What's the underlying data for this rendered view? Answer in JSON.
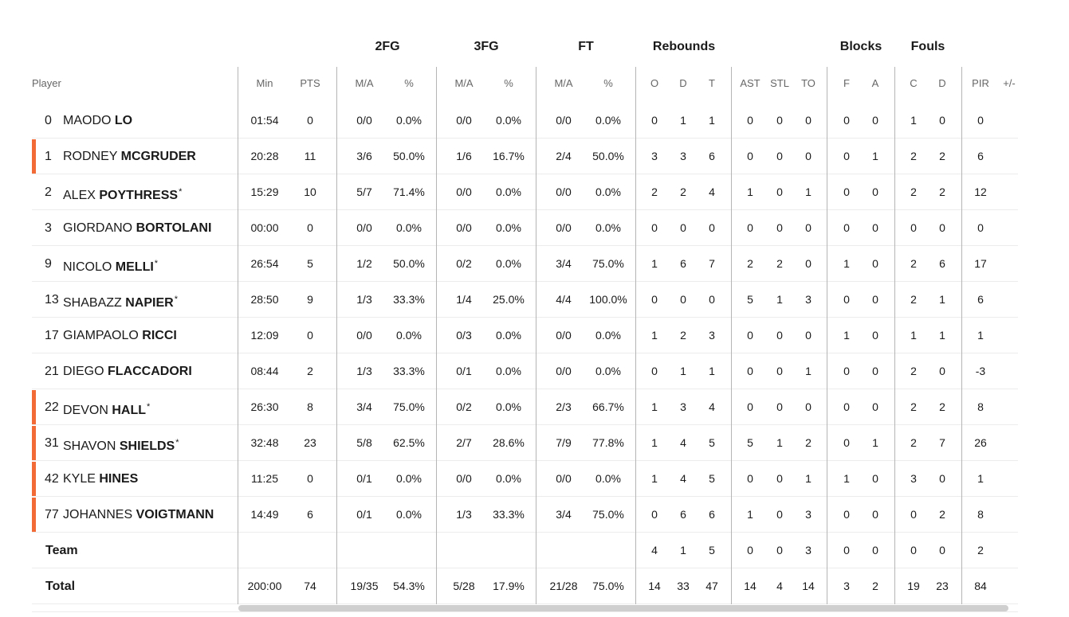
{
  "groups": [
    "2FG",
    "3FG",
    "FT",
    "Rebounds",
    "Blocks",
    "Fouls"
  ],
  "player_header": "Player",
  "columns": [
    "Min",
    "PTS",
    "M/A",
    "%",
    "M/A",
    "%",
    "M/A",
    "%",
    "O",
    "D",
    "T",
    "AST",
    "STL",
    "TO",
    "F",
    "A",
    "C",
    "D",
    "PIR",
    "+/-"
  ],
  "players": [
    {
      "num": "0",
      "first": "MAODO",
      "last": "LO",
      "starter": false,
      "on_court": false,
      "stats": [
        "01:54",
        "0",
        "0/0",
        "0.0%",
        "0/0",
        "0.0%",
        "0/0",
        "0.0%",
        "0",
        "1",
        "1",
        "0",
        "0",
        "0",
        "0",
        "0",
        "1",
        "0",
        "0",
        ""
      ]
    },
    {
      "num": "1",
      "first": "RODNEY",
      "last": "MCGRUDER",
      "starter": false,
      "on_court": true,
      "stats": [
        "20:28",
        "11",
        "3/6",
        "50.0%",
        "1/6",
        "16.7%",
        "2/4",
        "50.0%",
        "3",
        "3",
        "6",
        "0",
        "0",
        "0",
        "0",
        "1",
        "2",
        "2",
        "6",
        ""
      ]
    },
    {
      "num": "2",
      "first": "ALEX",
      "last": "POYTHRESS",
      "starter": true,
      "on_court": false,
      "stats": [
        "15:29",
        "10",
        "5/7",
        "71.4%",
        "0/0",
        "0.0%",
        "0/0",
        "0.0%",
        "2",
        "2",
        "4",
        "1",
        "0",
        "1",
        "0",
        "0",
        "2",
        "2",
        "12",
        ""
      ]
    },
    {
      "num": "3",
      "first": "GIORDANO",
      "last": "BORTOLANI",
      "starter": false,
      "on_court": false,
      "stats": [
        "00:00",
        "0",
        "0/0",
        "0.0%",
        "0/0",
        "0.0%",
        "0/0",
        "0.0%",
        "0",
        "0",
        "0",
        "0",
        "0",
        "0",
        "0",
        "0",
        "0",
        "0",
        "0",
        ""
      ]
    },
    {
      "num": "9",
      "first": "NICOLO",
      "last": "MELLI",
      "starter": true,
      "on_court": false,
      "stats": [
        "26:54",
        "5",
        "1/2",
        "50.0%",
        "0/2",
        "0.0%",
        "3/4",
        "75.0%",
        "1",
        "6",
        "7",
        "2",
        "2",
        "0",
        "1",
        "0",
        "2",
        "6",
        "17",
        ""
      ]
    },
    {
      "num": "13",
      "first": "SHABAZZ",
      "last": "NAPIER",
      "starter": true,
      "on_court": false,
      "stats": [
        "28:50",
        "9",
        "1/3",
        "33.3%",
        "1/4",
        "25.0%",
        "4/4",
        "100.0%",
        "0",
        "0",
        "0",
        "5",
        "1",
        "3",
        "0",
        "0",
        "2",
        "1",
        "6",
        ""
      ]
    },
    {
      "num": "17",
      "first": "GIAMPAOLO",
      "last": "RICCI",
      "starter": false,
      "on_court": false,
      "stats": [
        "12:09",
        "0",
        "0/0",
        "0.0%",
        "0/3",
        "0.0%",
        "0/0",
        "0.0%",
        "1",
        "2",
        "3",
        "0",
        "0",
        "0",
        "1",
        "0",
        "1",
        "1",
        "1",
        ""
      ]
    },
    {
      "num": "21",
      "first": "DIEGO",
      "last": "FLACCADORI",
      "starter": false,
      "on_court": false,
      "stats": [
        "08:44",
        "2",
        "1/3",
        "33.3%",
        "0/1",
        "0.0%",
        "0/0",
        "0.0%",
        "0",
        "1",
        "1",
        "0",
        "0",
        "1",
        "0",
        "0",
        "2",
        "0",
        "-3",
        ""
      ]
    },
    {
      "num": "22",
      "first": "DEVON",
      "last": "HALL",
      "starter": true,
      "on_court": true,
      "stats": [
        "26:30",
        "8",
        "3/4",
        "75.0%",
        "0/2",
        "0.0%",
        "2/3",
        "66.7%",
        "1",
        "3",
        "4",
        "0",
        "0",
        "0",
        "0",
        "0",
        "2",
        "2",
        "8",
        ""
      ]
    },
    {
      "num": "31",
      "first": "SHAVON",
      "last": "SHIELDS",
      "starter": true,
      "on_court": true,
      "stats": [
        "32:48",
        "23",
        "5/8",
        "62.5%",
        "2/7",
        "28.6%",
        "7/9",
        "77.8%",
        "1",
        "4",
        "5",
        "5",
        "1",
        "2",
        "0",
        "1",
        "2",
        "7",
        "26",
        ""
      ]
    },
    {
      "num": "42",
      "first": "KYLE",
      "last": "HINES",
      "starter": false,
      "on_court": true,
      "stats": [
        "11:25",
        "0",
        "0/1",
        "0.0%",
        "0/0",
        "0.0%",
        "0/0",
        "0.0%",
        "1",
        "4",
        "5",
        "0",
        "0",
        "1",
        "1",
        "0",
        "3",
        "0",
        "1",
        ""
      ]
    },
    {
      "num": "77",
      "first": "JOHANNES",
      "last": "VOIGTMANN",
      "starter": false,
      "on_court": true,
      "stats": [
        "14:49",
        "6",
        "0/1",
        "0.0%",
        "1/3",
        "33.3%",
        "3/4",
        "75.0%",
        "0",
        "6",
        "6",
        "1",
        "0",
        "3",
        "0",
        "0",
        "0",
        "2",
        "8",
        ""
      ]
    }
  ],
  "team": {
    "label": "Team",
    "stats": [
      "",
      "",
      "",
      "",
      "",
      "",
      "",
      "",
      "4",
      "1",
      "5",
      "0",
      "0",
      "3",
      "0",
      "0",
      "0",
      "0",
      "2",
      ""
    ]
  },
  "total": {
    "label": "Total",
    "stats": [
      "200:00",
      "74",
      "19/35",
      "54.3%",
      "5/28",
      "17.9%",
      "21/28",
      "75.0%",
      "14",
      "33",
      "47",
      "14",
      "4",
      "14",
      "3",
      "2",
      "19",
      "23",
      "84",
      ""
    ]
  },
  "star_glyph": "*",
  "colors": {
    "on_court_marker": "#f26a35",
    "divider": "#b5b5b5",
    "row_separator": "#ececec"
  }
}
